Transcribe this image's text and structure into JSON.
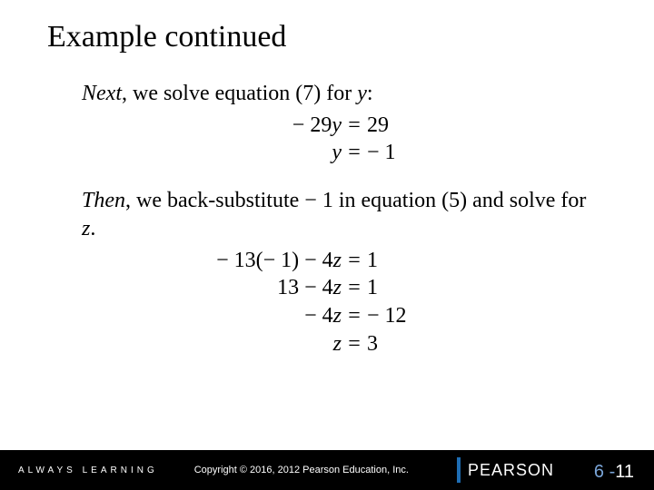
{
  "title": "Example continued",
  "p1_lead": "Next",
  "p1_rest": ", we solve equation (7) for ",
  "p1_var": "y",
  "p1_tail": ":",
  "eq1_l": "− 29",
  "eq1_lv": "y",
  "eq1_c": "=",
  "eq1_r": "29",
  "eq2_lv": "y",
  "eq2_c": "=",
  "eq2_r": "− 1",
  "p2_lead": "Then",
  "p2_rest": ", we back-substitute − 1 in equation (5) and solve for ",
  "p2_var": "z",
  "p2_tail": ".",
  "eq3_l": "− 13(− 1) − 4",
  "eq3_lv": "z",
  "eq3_c": "=",
  "eq3_r": "1",
  "eq4_l": "13 − 4",
  "eq4_lv": "z",
  "eq4_c": "=",
  "eq4_r": "1",
  "eq5_l": "− 4",
  "eq5_lv": "z",
  "eq5_c": "=",
  "eq5_r": "− 12",
  "eq6_lv": "z",
  "eq6_c": "=",
  "eq6_r": "3",
  "footer": {
    "always": "ALWAYS LEARNING",
    "copyright": "Copyright © 2016, 2012 Pearson Education, Inc.",
    "brand": "PEARSON",
    "page_ch": "6",
    "page_dash": " -",
    "page_pg": "11"
  },
  "colors": {
    "bg": "#ffffff",
    "text": "#000000",
    "footer_bg": "#000000",
    "footer_text": "#ffffff",
    "brand_bar": "#1e6db3",
    "page_ch": "#7aa5d8",
    "page_pg": "#ffffff"
  },
  "fonts": {
    "title_size_pt": 26,
    "body_size_pt": 18,
    "body_family": "Times New Roman",
    "footer_family": "Arial"
  }
}
